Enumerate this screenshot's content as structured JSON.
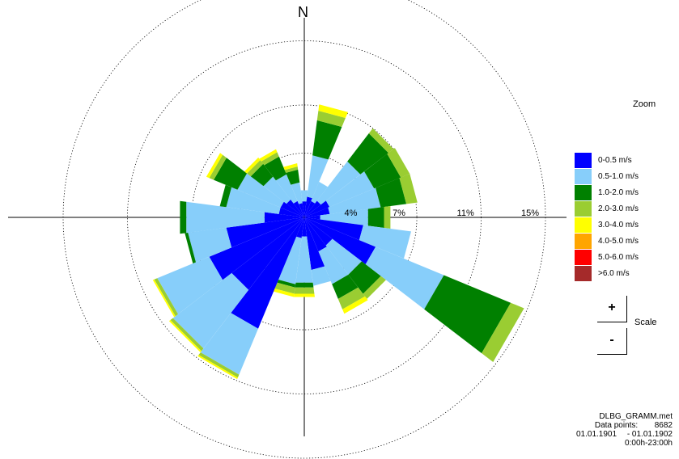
{
  "chart_data": {
    "type": "windrose",
    "north_label": "N",
    "radial_ticks": [
      {
        "value": 4,
        "label": "4%"
      },
      {
        "value": 7,
        "label": "7%"
      },
      {
        "value": 11,
        "label": "11%"
      },
      {
        "value": 15,
        "label": "15%"
      }
    ],
    "r_max": 15,
    "speed_classes": [
      {
        "label": "0-0.5 m/s",
        "color": "#0000ff"
      },
      {
        "label": "0.5-1.0 m/s",
        "color": "#87cefa"
      },
      {
        "label": "1.0-2.0 m/s",
        "color": "#008000"
      },
      {
        "label": "2.0-3.0 m/s",
        "color": "#9acd32"
      },
      {
        "label": "3.0-4.0 m/s",
        "color": "#ffff00"
      },
      {
        "label": "4.0-5.0 m/s",
        "color": "#ffa500"
      },
      {
        "label": "5.0-6.0 m/s",
        "color": "#ff0000"
      },
      {
        "label": ">6.0 m/s",
        "color": "#a52a2a"
      }
    ],
    "sectors": [
      {
        "dir": 0,
        "values": [
          1.0,
          0.7,
          0.0,
          0.0,
          0.0,
          0.0,
          0.0,
          0.0
        ]
      },
      {
        "dir": 15,
        "values": [
          1.3,
          2.6,
          2.2,
          0.6,
          0.4,
          0.0,
          0.0,
          0.0
        ]
      },
      {
        "dir": 30,
        "values": [
          1.1,
          1.3,
          0.0,
          0.0,
          0.0,
          0.0,
          0.0,
          0.0
        ]
      },
      {
        "dir": 45,
        "values": [
          1.3,
          3.1,
          2.2,
          0.4,
          0.0,
          0.0,
          0.0,
          0.0
        ]
      },
      {
        "dir": 60,
        "values": [
          1.7,
          3.0,
          1.8,
          0.6,
          0.0,
          0.0,
          0.0,
          0.0
        ]
      },
      {
        "dir": 75,
        "values": [
          1.6,
          3.2,
          1.6,
          0.7,
          0.0,
          0.0,
          0.0,
          0.0
        ]
      },
      {
        "dir": 90,
        "values": [
          1.0,
          3.0,
          1.0,
          0.4,
          0.0,
          0.0,
          0.0,
          0.0
        ]
      },
      {
        "dir": 105,
        "values": [
          3.7,
          3.0,
          0.0,
          0.0,
          0.0,
          0.0,
          0.0,
          0.0
        ]
      },
      {
        "dir": 120,
        "values": [
          4.8,
          4.6,
          4.5,
          0.9,
          0.0,
          0.0,
          0.0,
          0.0
        ]
      },
      {
        "dir": 135,
        "values": [
          2.2,
          2.3,
          1.5,
          0.4,
          0.0,
          0.0,
          0.0,
          0.0
        ]
      },
      {
        "dir": 150,
        "values": [
          2.3,
          2.2,
          1.0,
          0.7,
          0.3,
          0.0,
          0.0,
          0.0
        ]
      },
      {
        "dir": 165,
        "values": [
          3.3,
          1.0,
          0.0,
          0.0,
          0.0,
          0.0,
          0.0,
          0.0
        ]
      },
      {
        "dir": 180,
        "values": [
          1.2,
          2.9,
          0.3,
          0.4,
          0.2,
          0.0,
          0.0,
          0.0
        ]
      },
      {
        "dir": 195,
        "values": [
          1.3,
          2.9,
          0.2,
          0.4,
          0.2,
          0.0,
          0.0,
          0.0
        ]
      },
      {
        "dir": 210,
        "values": [
          7.5,
          3.1,
          0.0,
          0.2,
          0.1,
          0.0,
          0.0,
          0.0
        ]
      },
      {
        "dir": 225,
        "values": [
          5.7,
          4.6,
          0.0,
          0.2,
          0.1,
          0.0,
          0.0,
          0.0
        ]
      },
      {
        "dir": 240,
        "values": [
          6.4,
          3.5,
          0.0,
          0.2,
          0.1,
          0.0,
          0.0,
          0.0
        ]
      },
      {
        "dir": 255,
        "values": [
          4.9,
          2.4,
          0.2,
          0.0,
          0.0,
          0.0,
          0.0,
          0.0
        ]
      },
      {
        "dir": 270,
        "values": [
          2.5,
          4.9,
          0.4,
          0.0,
          0.0,
          0.0,
          0.0,
          0.0
        ]
      },
      {
        "dir": 285,
        "values": [
          1.6,
          3.3,
          0.4,
          0.0,
          0.0,
          0.0,
          0.0,
          0.0
        ]
      },
      {
        "dir": 300,
        "values": [
          1.6,
          2.9,
          1.6,
          0.3,
          0.2,
          0.0,
          0.0,
          0.0
        ]
      },
      {
        "dir": 315,
        "values": [
          1.4,
          1.8,
          1.0,
          0.3,
          0.2,
          0.0,
          0.0,
          0.0
        ]
      },
      {
        "dir": 330,
        "values": [
          1.1,
          1.8,
          1.2,
          0.3,
          0.2,
          0.0,
          0.0,
          0.0
        ]
      },
      {
        "dir": 345,
        "values": [
          0.9,
          1.3,
          0.8,
          0.2,
          0.2,
          0.0,
          0.0,
          0.0
        ]
      }
    ]
  },
  "controls": {
    "zoom_label": "Zoom",
    "scale_label": "Scale",
    "plus_label": "+",
    "minus_label": "-"
  },
  "info": {
    "file": "DLBG_GRAMM.met",
    "data_points_label": "Data points:",
    "data_points_value": "8682",
    "date_from": "01.01.1901",
    "date_to": "- 01.01.1902",
    "time_range": "0:00h-23:00h"
  }
}
